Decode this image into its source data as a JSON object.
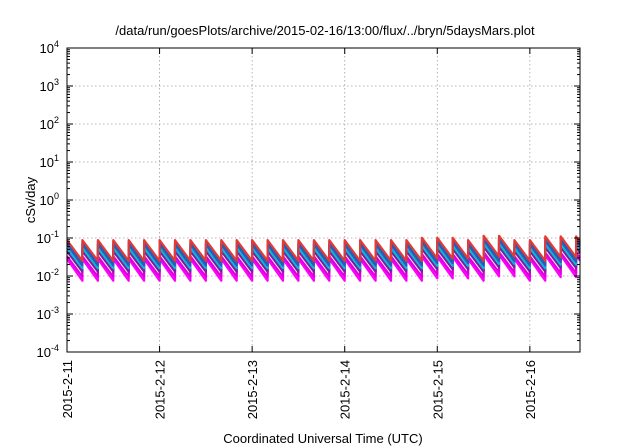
{
  "chart_data": {
    "type": "line",
    "title": "/data/run/goesPlots/archive/2015-02-16/13:00/flux/../bryn/5daysMars.plot",
    "xlabel": "Coordinated Universal Time (UTC)",
    "ylabel": "cSv/day",
    "yscale": "log",
    "ylim": [
      0.0001,
      10000
    ],
    "xlim": [
      "2015-02-11 00:00",
      "2015-02-16 13:00"
    ],
    "y_ticks": [
      {
        "base": "10",
        "exp": "-4",
        "value": 0.0001
      },
      {
        "base": "10",
        "exp": "-3",
        "value": 0.001
      },
      {
        "base": "10",
        "exp": "-2",
        "value": 0.01
      },
      {
        "base": "10",
        "exp": "-1",
        "value": 0.1
      },
      {
        "base": "10",
        "exp": "0",
        "value": 1
      },
      {
        "base": "10",
        "exp": "1",
        "value": 10
      },
      {
        "base": "10",
        "exp": "2",
        "value": 100
      },
      {
        "base": "10",
        "exp": "3",
        "value": 1000
      },
      {
        "base": "10",
        "exp": "4",
        "value": 10000
      }
    ],
    "x_ticks": [
      "2015-2-11",
      "2015-2-12",
      "2015-2-13",
      "2015-2-14",
      "2015-2-15",
      "2015-2-16"
    ],
    "grid": true,
    "legend": "none",
    "sawtooth_period_hours": 4,
    "series": [
      {
        "color": "#ff00ff",
        "peak": 0.028,
        "trough": 0.0075
      },
      {
        "color": "#dd00dd",
        "peak": 0.033,
        "trough": 0.0095
      },
      {
        "color": "#7b1fa2",
        "peak": 0.045,
        "trough": 0.013
      },
      {
        "color": "#00bcd4",
        "peak": 0.055,
        "trough": 0.016
      },
      {
        "color": "#3f51b5",
        "peak": 0.068,
        "trough": 0.019
      },
      {
        "color": "#1565c0",
        "peak": 0.078,
        "trough": 0.022
      },
      {
        "color": "#e53935",
        "peak": 0.088,
        "trough": 0.025
      }
    ],
    "episodes": [
      {
        "from": "2015-02-14 20:00",
        "to": "2015-02-15 08:00",
        "factor": 1.15
      },
      {
        "from": "2015-02-15 10:00",
        "to": "2015-02-15 20:00",
        "factor": 1.3
      },
      {
        "from": "2015-02-16 04:00",
        "to": "2015-02-16 13:00",
        "factor": 1.25
      }
    ]
  }
}
